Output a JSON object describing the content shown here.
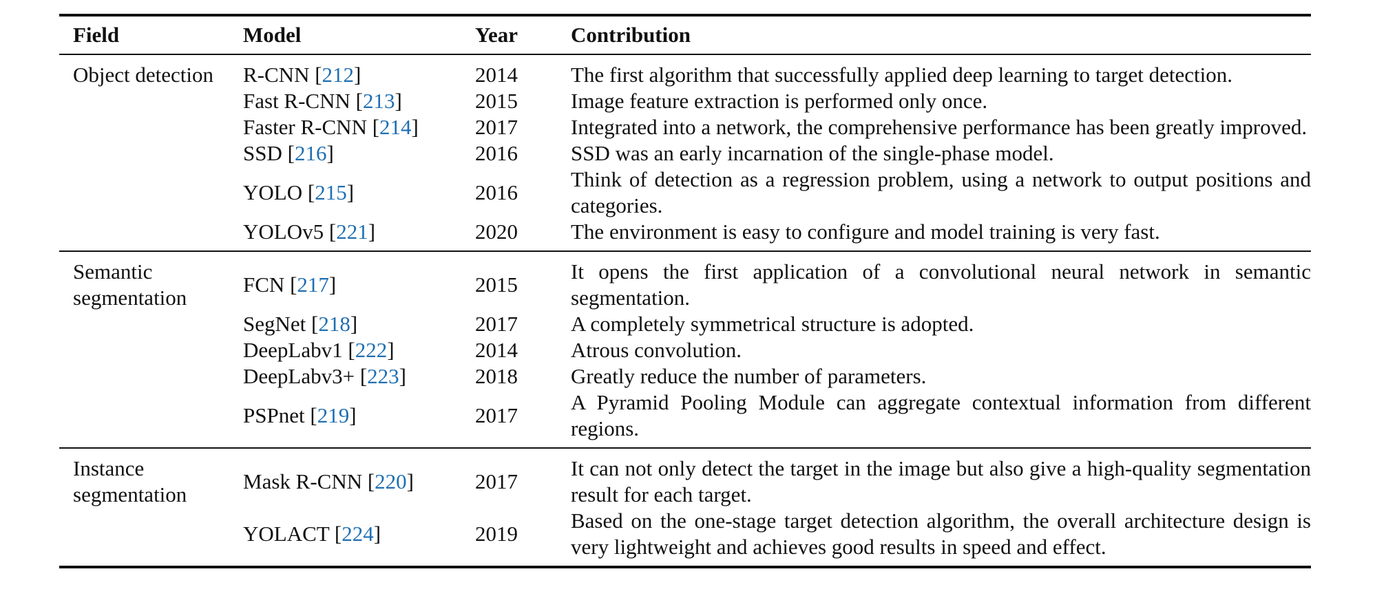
{
  "table": {
    "headers": {
      "field": "Field",
      "model": "Model",
      "year": "Year",
      "contribution": "Contribution"
    },
    "groups": [
      {
        "field": "Object detection",
        "rows": [
          {
            "model": "R-CNN",
            "ref": "212",
            "year": "2014",
            "contribution": "The first algorithm that successfully applied deep learning to target detection."
          },
          {
            "model": "Fast R-CNN",
            "ref": "213",
            "year": "2015",
            "contribution": "Image feature extraction is performed only once."
          },
          {
            "model": "Faster R-CNN",
            "ref": "214",
            "year": "2017",
            "contribution": "Integrated into a network, the comprehensive performance has been greatly improved."
          },
          {
            "model": "SSD",
            "ref": "216",
            "year": "2016",
            "contribution": "SSD was an early incarnation of the single-phase model."
          },
          {
            "model": "YOLO",
            "ref": "215",
            "year": "2016",
            "contribution": "Think of detection as a regression problem, using a network to output positions and categories."
          },
          {
            "model": "YOLOv5",
            "ref": "221",
            "year": "2020",
            "contribution": "The environment is easy to configure and model training is very fast."
          }
        ]
      },
      {
        "field": "Semantic segmentation",
        "rows": [
          {
            "model": "FCN",
            "ref": "217",
            "year": "2015",
            "contribution": "It opens the first application of a convolutional neural network in semantic segmentation."
          },
          {
            "model": "SegNet",
            "ref": "218",
            "year": "2017",
            "contribution": "A completely symmetrical structure is adopted."
          },
          {
            "model": "DeepLabv1",
            "ref": "222",
            "year": "2014",
            "contribution": "Atrous convolution."
          },
          {
            "model": "DeepLabv3+",
            "ref": "223",
            "year": "2018",
            "contribution": "Greatly reduce the number of parameters."
          },
          {
            "model": "PSPnet",
            "ref": "219",
            "year": "2017",
            "contribution": "A Pyramid Pooling Module can aggregate contextual information from different regions."
          }
        ]
      },
      {
        "field": "Instance segmentation",
        "rows": [
          {
            "model": "Mask R-CNN",
            "ref": "220",
            "year": "2017",
            "contribution": "It can not only detect the target in the image but also give a high-quality segmentation result for each target."
          },
          {
            "model": "YOLACT",
            "ref": "224",
            "year": "2019",
            "contribution": "Based on the one-stage target detection algorithm, the overall architecture design is very lightweight and achieves good results in speed and effect."
          }
        ]
      }
    ],
    "link_color": "#1f6fb2"
  }
}
